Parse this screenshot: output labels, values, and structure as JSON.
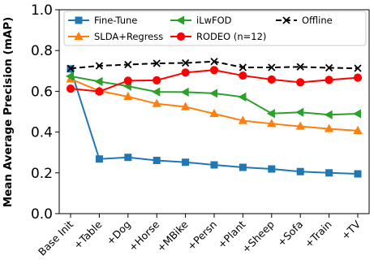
{
  "chart_data": {
    "type": "line",
    "title": "",
    "xlabel": "",
    "ylabel": "Mean Average Precision (mAP)",
    "ylim": [
      0.0,
      1.0
    ],
    "yticks": [
      "0.0",
      "0.2",
      "0.4",
      "0.6",
      "0.8",
      "1.0"
    ],
    "grid": false,
    "legend_position": "top",
    "categories": [
      "Base Init",
      "+Table",
      "+Dog",
      "+Horse",
      "+MBike",
      "+Persn",
      "+Plant",
      "+Sheep",
      "+Sofa",
      "+Train",
      "+TV"
    ],
    "series": [
      {
        "name": "Fine-Tune",
        "color": "#1f77b4",
        "marker": "square",
        "linestyle": "solid",
        "values": [
          0.71,
          0.268,
          0.276,
          0.261,
          0.252,
          0.239,
          0.227,
          0.219,
          0.206,
          0.2,
          0.195
        ]
      },
      {
        "name": "SLDA+Regress",
        "color": "#ff7f0e",
        "marker": "triangle-up",
        "linestyle": "solid",
        "values": [
          0.66,
          0.602,
          0.574,
          0.539,
          0.524,
          0.49,
          0.456,
          0.441,
          0.428,
          0.416,
          0.407
        ]
      },
      {
        "name": "iLwFOD",
        "color": "#2ca02c",
        "marker": "triangle-left",
        "linestyle": "solid",
        "values": [
          0.674,
          0.648,
          0.625,
          0.597,
          0.596,
          0.59,
          0.572,
          0.491,
          0.497,
          0.485,
          0.49
        ]
      },
      {
        "name": "RODEO (n=12)",
        "color": "#ff0000",
        "marker": "circle",
        "linestyle": "solid",
        "values": [
          0.613,
          0.599,
          0.652,
          0.654,
          0.692,
          0.704,
          0.677,
          0.658,
          0.644,
          0.656,
          0.667
        ]
      },
      {
        "name": "Offline",
        "color": "#000000",
        "marker": "x",
        "linestyle": "dashed",
        "values": [
          0.712,
          0.725,
          0.731,
          0.737,
          0.739,
          0.746,
          0.717,
          0.717,
          0.72,
          0.715,
          0.713
        ]
      }
    ]
  }
}
